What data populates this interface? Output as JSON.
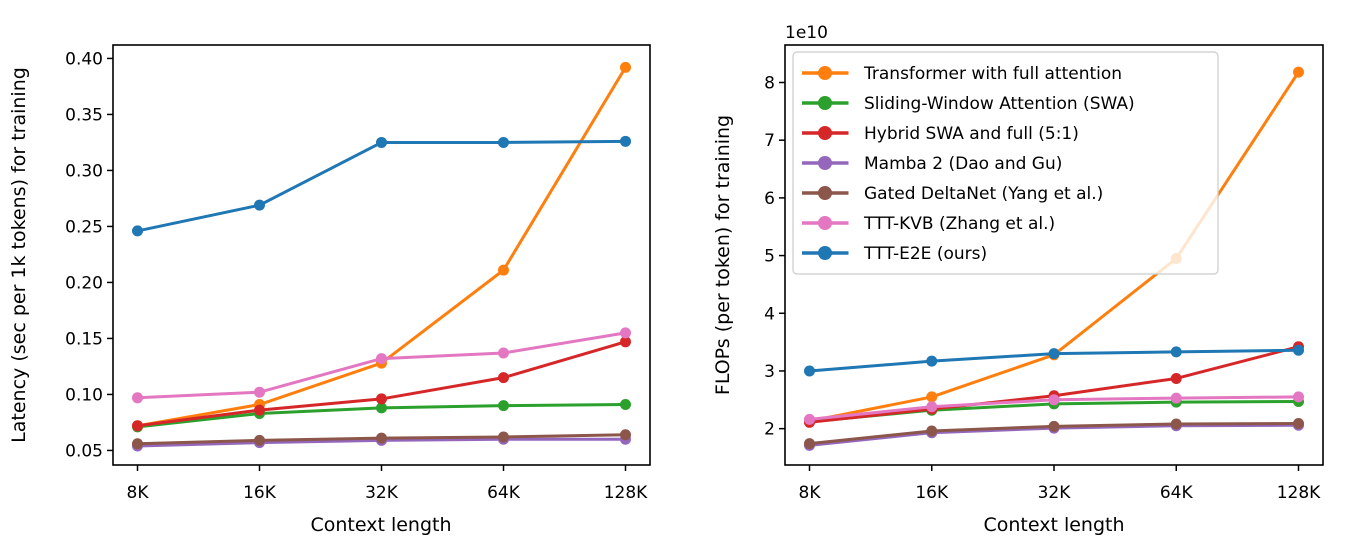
{
  "chart_data": [
    {
      "type": "line",
      "title": "",
      "xlabel": "Context length",
      "ylabel": "Latency (sec per 1k tokens) for training",
      "categories": [
        "8K",
        "16K",
        "32K",
        "64K",
        "128K"
      ],
      "ylim": [
        0.037,
        0.412
      ],
      "yticks": [
        {
          "value": 0.05,
          "label": "0.05"
        },
        {
          "value": 0.1,
          "label": "0.10"
        },
        {
          "value": 0.15,
          "label": "0.15"
        },
        {
          "value": 0.2,
          "label": "0.20"
        },
        {
          "value": 0.25,
          "label": "0.25"
        },
        {
          "value": 0.3,
          "label": "0.30"
        },
        {
          "value": 0.35,
          "label": "0.35"
        },
        {
          "value": 0.4,
          "label": "0.40"
        }
      ],
      "grid": false,
      "legend_visible": false,
      "series": [
        {
          "name": "Transformer with full attention",
          "color": "#ff7f0e",
          "values": [
            0.072,
            0.091,
            0.128,
            0.211,
            0.392
          ]
        },
        {
          "name": "Sliding-Window Attention (SWA)",
          "color": "#2ca02c",
          "values": [
            0.071,
            0.083,
            0.088,
            0.09,
            0.091
          ]
        },
        {
          "name": "Hybrid SWA and full (5:1)",
          "color": "#d62728",
          "values": [
            0.072,
            0.086,
            0.096,
            0.115,
            0.147
          ]
        },
        {
          "name": "Mamba 2 (Dao and Gu)",
          "color": "#9467bd",
          "values": [
            0.054,
            0.057,
            0.059,
            0.06,
            0.06
          ]
        },
        {
          "name": "Gated DeltaNet (Yang et al.)",
          "color": "#8c564b",
          "values": [
            0.056,
            0.059,
            0.061,
            0.062,
            0.064
          ]
        },
        {
          "name": "TTT-KVB (Zhang et al.)",
          "color": "#e377c2",
          "values": [
            0.097,
            0.102,
            0.132,
            0.137,
            0.155
          ]
        },
        {
          "name": "TTT-E2E (ours)",
          "color": "#1f77b4",
          "values": [
            0.246,
            0.269,
            0.325,
            0.325,
            0.326
          ]
        }
      ]
    },
    {
      "type": "line",
      "title": "",
      "xlabel": "Context length",
      "ylabel": "FLOPs (per token) for training",
      "offset_text": "1e10",
      "y_multiplier": 10000000000.0,
      "categories": [
        "8K",
        "16K",
        "32K",
        "64K",
        "128K"
      ],
      "ylim": [
        1.37,
        8.65
      ],
      "yticks": [
        {
          "value": 2,
          "label": "2"
        },
        {
          "value": 3,
          "label": "3"
        },
        {
          "value": 4,
          "label": "4"
        },
        {
          "value": 5,
          "label": "5"
        },
        {
          "value": 6,
          "label": "6"
        },
        {
          "value": 7,
          "label": "7"
        },
        {
          "value": 8,
          "label": "8"
        }
      ],
      "grid": false,
      "legend_visible": true,
      "legend_position": "upper left",
      "series": [
        {
          "name": "Transformer with full attention",
          "color": "#ff7f0e",
          "values": [
            2.13,
            2.55,
            3.28,
            4.95,
            8.18
          ]
        },
        {
          "name": "Sliding-Window Attention (SWA)",
          "color": "#2ca02c",
          "values": [
            2.12,
            2.32,
            2.43,
            2.46,
            2.47
          ]
        },
        {
          "name": "Hybrid SWA and full (5:1)",
          "color": "#d62728",
          "values": [
            2.11,
            2.34,
            2.57,
            2.87,
            3.42
          ]
        },
        {
          "name": "Mamba 2 (Dao and Gu)",
          "color": "#9467bd",
          "values": [
            1.71,
            1.93,
            2.01,
            2.05,
            2.06
          ]
        },
        {
          "name": "Gated DeltaNet (Yang et al.)",
          "color": "#8c564b",
          "values": [
            1.74,
            1.96,
            2.04,
            2.08,
            2.09
          ]
        },
        {
          "name": "TTT-KVB (Zhang et al.)",
          "color": "#e377c2",
          "values": [
            2.16,
            2.38,
            2.5,
            2.53,
            2.55
          ]
        },
        {
          "name": "TTT-E2E (ours)",
          "color": "#1f77b4",
          "values": [
            3.0,
            3.17,
            3.3,
            3.33,
            3.36
          ]
        }
      ],
      "legend_entries": [
        "Transformer with full attention",
        "Sliding-Window Attention (SWA)",
        "Hybrid SWA and full (5:1)",
        "Mamba 2 (Dao and Gu)",
        "Gated DeltaNet (Yang et al.)",
        "TTT-KVB (Zhang et al.)",
        "TTT-E2E (ours)"
      ]
    }
  ]
}
